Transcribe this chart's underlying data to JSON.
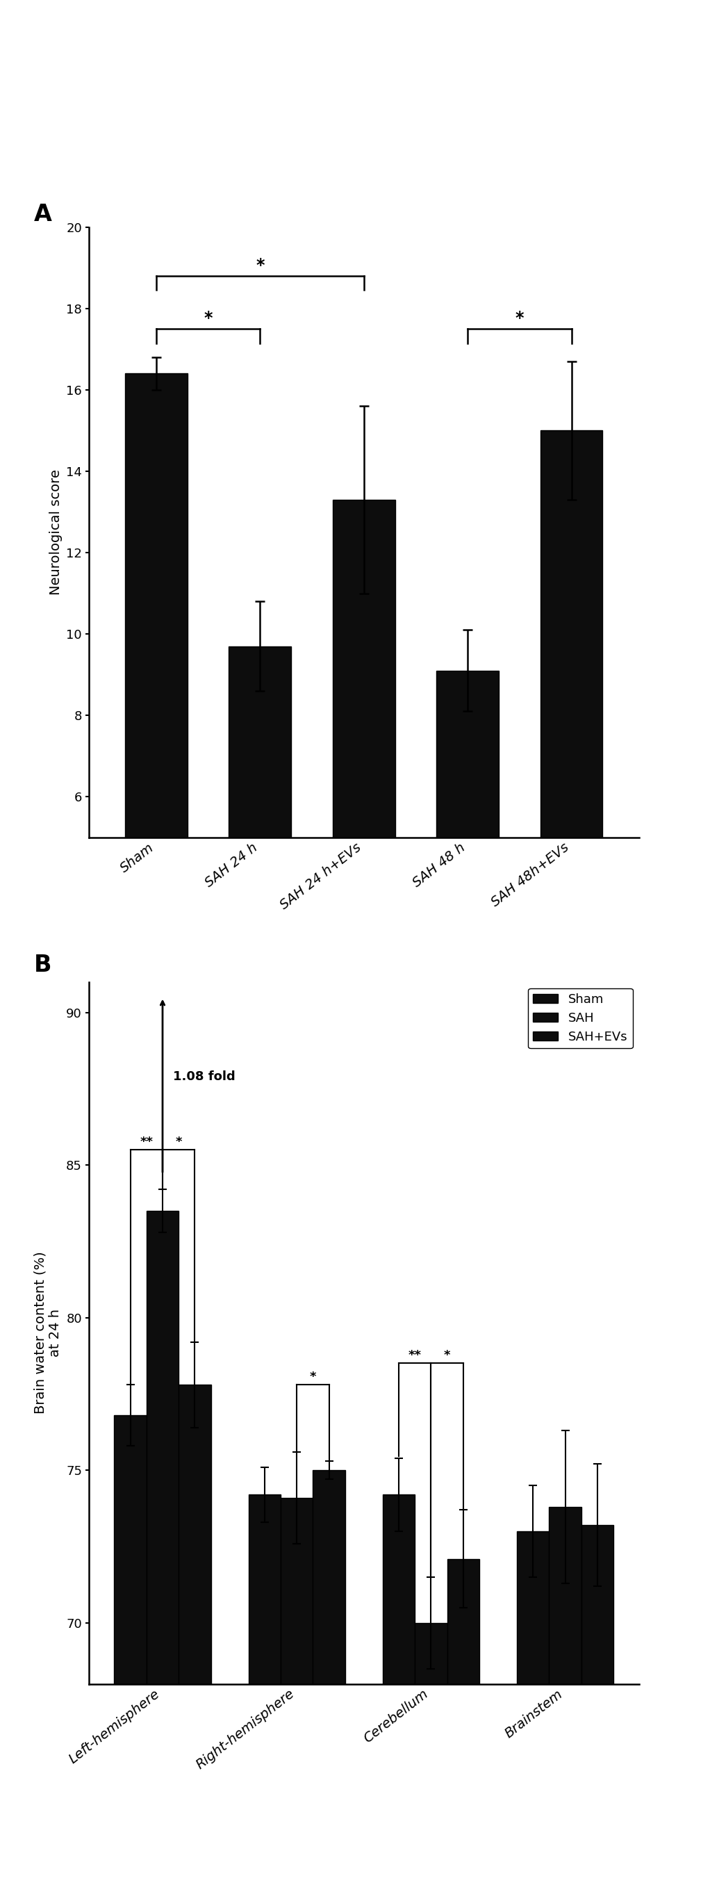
{
  "panel_A": {
    "categories": [
      "Sham",
      "SAH 24 h",
      "SAH 24 h+EVs",
      "SAH 48 h",
      "SAH 48h+EVs"
    ],
    "values": [
      16.4,
      9.7,
      13.3,
      9.1,
      15.0
    ],
    "errors": [
      0.4,
      1.1,
      2.3,
      1.0,
      1.7
    ],
    "bar_color": "#0d0d0d",
    "ylabel": "Neurological score",
    "ylim": [
      5,
      20
    ],
    "yticks": [
      6,
      8,
      10,
      12,
      14,
      16,
      18,
      20
    ]
  },
  "panel_B": {
    "group_labels": [
      "Left-hemisphere",
      "Right-hemisphere",
      "Cerebellum",
      "Brainstem"
    ],
    "series": {
      "Sham": [
        76.8,
        74.2,
        74.2,
        73.0
      ],
      "SAH": [
        83.5,
        74.1,
        70.0,
        73.8
      ],
      "SAH+EVs": [
        77.8,
        75.0,
        72.1,
        73.2
      ]
    },
    "errors": {
      "Sham": [
        1.0,
        0.9,
        1.2,
        1.5
      ],
      "SAH": [
        0.7,
        1.5,
        1.5,
        2.5
      ],
      "SAH+EVs": [
        1.4,
        0.3,
        1.6,
        2.0
      ]
    },
    "series_colors": {
      "Sham": "#0d0d0d",
      "SAH": "#0d0d0d",
      "SAH+EVs": "#0d0d0d"
    },
    "ylabel": "Brain water content (%)\nat 24 h",
    "ylim": [
      68,
      91
    ],
    "yticks": [
      70,
      75,
      80,
      85,
      90
    ],
    "fold_annotation": "1.08 fold"
  },
  "background_color": "#ffffff",
  "bar_edgecolor": "#000000",
  "label_fontsize": 14,
  "tick_fontsize": 13
}
